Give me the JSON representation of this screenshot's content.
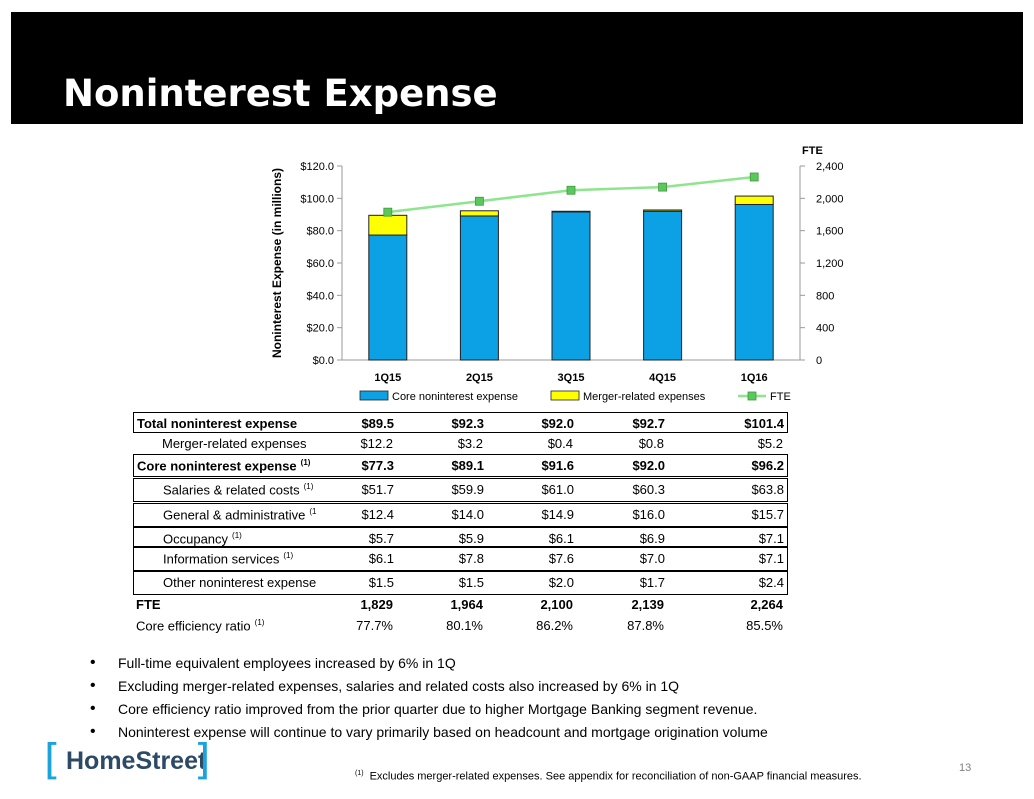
{
  "slide": {
    "title": "Noninterest Expense",
    "page_number": "13",
    "logo_text": "HomeStreet",
    "footnote_marker": "(1)",
    "footnote_text": "Excludes merger-related expenses. See appendix for reconciliation of non-GAAP financial measures."
  },
  "chart_data": {
    "type": "bar",
    "stacked": true,
    "categories": [
      "1Q15",
      "2Q15",
      "3Q15",
      "4Q15",
      "1Q16"
    ],
    "series": [
      {
        "name": "Core noninterest expense",
        "type": "bar",
        "axis": "left",
        "color": "#0ca0e4",
        "values": [
          77.3,
          89.1,
          91.6,
          92.0,
          96.2
        ]
      },
      {
        "name": "Merger-related expenses",
        "type": "bar",
        "axis": "left",
        "color": "#ffff00",
        "values": [
          12.2,
          3.2,
          0.4,
          0.8,
          5.2
        ]
      },
      {
        "name": "FTE",
        "type": "line",
        "axis": "right",
        "color": "#8ee58e",
        "marker_color": "#5bc85b",
        "values": [
          1829,
          1964,
          2100,
          2139,
          2264
        ]
      }
    ],
    "ylabel": "Noninterest Expense (in millions)",
    "y2label": "FTE",
    "ylim": [
      0,
      120
    ],
    "y2lim": [
      0,
      2400
    ],
    "yticks": [
      "$0.0",
      "$20.0",
      "$40.0",
      "$60.0",
      "$80.0",
      "$100.0",
      "$120.0"
    ],
    "y2ticks": [
      "0",
      "400",
      "800",
      "1,200",
      "1,600",
      "2,000",
      "2,400"
    ],
    "grid": false,
    "legend": "bottom"
  },
  "table": {
    "rows": [
      {
        "label": "Total noninterest expense",
        "sup": "",
        "bold": true,
        "indent": false,
        "values": [
          "$89.5",
          "$92.3",
          "$92.0",
          "$92.7",
          "$101.4"
        ]
      },
      {
        "label": "Merger-related expenses",
        "sup": "",
        "bold": false,
        "indent": true,
        "values": [
          "$12.2",
          "$3.2",
          "$0.4",
          "$0.8",
          "$5.2"
        ]
      },
      {
        "label": "Core noninterest expense",
        "sup": "(1)",
        "bold": true,
        "indent": false,
        "values": [
          "$77.3",
          "$89.1",
          "$91.6",
          "$92.0",
          "$96.2"
        ]
      },
      {
        "label": "Salaries & related costs",
        "sup": "(1)",
        "bold": false,
        "indent": true,
        "values": [
          "$51.7",
          "$59.9",
          "$61.0",
          "$60.3",
          "$63.8"
        ]
      },
      {
        "label": "General & administrative",
        "sup": "(1",
        "bold": false,
        "indent": true,
        "values": [
          "$12.4",
          "$14.0",
          "$14.9",
          "$16.0",
          "$15.7"
        ]
      },
      {
        "label": "Occupancy",
        "sup": "(1)",
        "bold": false,
        "indent": true,
        "values": [
          "$5.7",
          "$5.9",
          "$6.1",
          "$6.9",
          "$7.1"
        ]
      },
      {
        "label": "Information services",
        "sup": "(1)",
        "bold": false,
        "indent": true,
        "values": [
          "$6.1",
          "$7.8",
          "$7.6",
          "$7.0",
          "$7.1"
        ]
      },
      {
        "label": "Other noninterest expense",
        "sup": "",
        "bold": false,
        "indent": true,
        "values": [
          "$1.5",
          "$1.5",
          "$2.0",
          "$1.7",
          "$2.4"
        ]
      },
      {
        "label": "FTE",
        "sup": "",
        "bold": true,
        "indent": false,
        "values": [
          "1,829",
          "1,964",
          "2,100",
          "2,139",
          "2,264"
        ]
      },
      {
        "label": "Core efficiency ratio",
        "sup": "(1)",
        "bold": false,
        "indent": false,
        "values": [
          "77.7%",
          "80.1%",
          "86.2%",
          "87.8%",
          "85.5%"
        ]
      }
    ]
  },
  "bullets": [
    "Full-time equivalent employees increased by 6% in 1Q",
    "Excluding merger-related expenses, salaries and related costs also increased by 6% in 1Q",
    "Core efficiency ratio improved from the prior quarter due to higher Mortgage Banking segment revenue.",
    "Noninterest expense will continue to vary primarily based on headcount and mortgage origination volume"
  ]
}
